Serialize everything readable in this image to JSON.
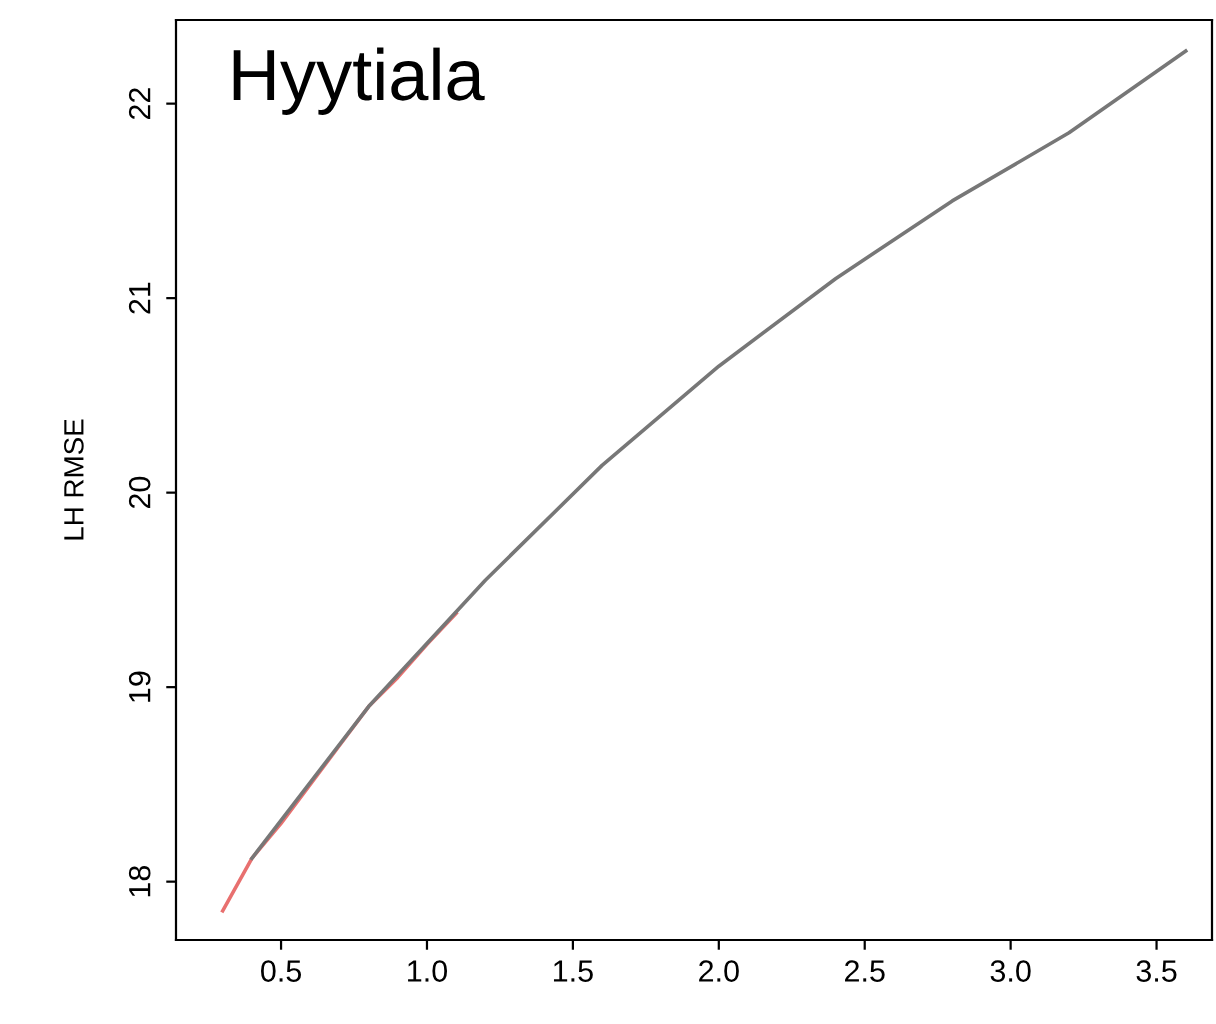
{
  "chart_data": {
    "type": "line",
    "title": "Hyytiala",
    "ylabel": "LH RMSE",
    "series": [
      {
        "color": "#e8706f",
        "x": [
          0.3,
          0.4,
          0.5,
          0.6,
          0.7,
          0.8,
          0.9,
          1.0,
          1.1
        ],
        "values": [
          17.85,
          18.12,
          18.3,
          18.5,
          18.7,
          18.9,
          19.05,
          19.22,
          19.38
        ]
      },
      {
        "color": "#777777",
        "x": [
          0.4,
          0.8,
          1.2,
          1.6,
          2.0,
          2.4,
          2.8,
          3.2,
          3.6
        ],
        "values": [
          18.12,
          18.9,
          19.55,
          20.14,
          20.65,
          21.1,
          21.5,
          21.85,
          22.27
        ]
      }
    ],
    "xlim": [
      0.14,
      3.69
    ],
    "ylim": [
      17.7,
      22.43
    ],
    "xticks": [
      0.5,
      {
        "value": 1,
        "label": "1.0"
      },
      1.5,
      {
        "value": 2,
        "label": "2.0"
      },
      2.5,
      {
        "value": 3,
        "label": "3.0"
      },
      3.5
    ],
    "yticks": [
      18,
      19,
      20,
      21,
      22
    ],
    "grid": false,
    "legend": false
  }
}
